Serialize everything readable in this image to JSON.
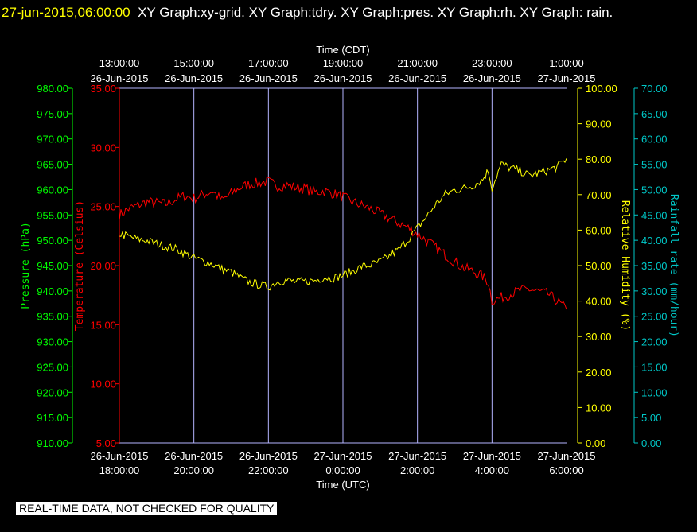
{
  "header": {
    "timestamp": "27-jun-2015,06:00:00",
    "title": "XY Graph:xy-grid.  XY Graph:tdry.  XY Graph:pres.  XY Graph:rh.  XY Graph: rain."
  },
  "footer": {
    "disclaimer": "REAL-TIME DATA, NOT CHECKED FOR QUALITY"
  },
  "colors": {
    "background": "#000000",
    "temperature": "#ff0000",
    "humidity": "#ffff00",
    "pressure": "#00ff00",
    "rainfall": "#00c8c8",
    "grid": "#b4b4ff",
    "axes_text": "#ffffff"
  },
  "chart_data": {
    "type": "line",
    "time_axes": {
      "top": {
        "label": "Time (CDT)",
        "ticks": [
          {
            "time": "13:00:00",
            "date": "26-Jun-2015"
          },
          {
            "time": "15:00:00",
            "date": "26-Jun-2015"
          },
          {
            "time": "17:00:00",
            "date": "26-Jun-2015"
          },
          {
            "time": "19:00:00",
            "date": "26-Jun-2015"
          },
          {
            "time": "21:00:00",
            "date": "26-Jun-2015"
          },
          {
            "time": "23:00:00",
            "date": "26-Jun-2015"
          },
          {
            "time": "1:00:00",
            "date": "27-Jun-2015"
          }
        ]
      },
      "bottom": {
        "label": "Time (UTC)",
        "ticks": [
          {
            "date": "26-Jun-2015",
            "time": "18:00:00"
          },
          {
            "date": "26-Jun-2015",
            "time": "20:00:00"
          },
          {
            "date": "26-Jun-2015",
            "time": "22:00:00"
          },
          {
            "date": "27-Jun-2015",
            "time": "0:00:00"
          },
          {
            "date": "27-Jun-2015",
            "time": "2:00:00"
          },
          {
            "date": "27-Jun-2015",
            "time": "4:00:00"
          },
          {
            "date": "27-Jun-2015",
            "time": "6:00:00"
          }
        ]
      },
      "range_hours_utc": [
        18,
        30
      ]
    },
    "y_axes": {
      "pressure": {
        "label": "Pressure (hPa)",
        "range": [
          910,
          980
        ],
        "ticks": [
          "910.00",
          "915.00",
          "920.00",
          "925.00",
          "930.00",
          "935.00",
          "940.00",
          "945.00",
          "950.00",
          "955.00",
          "960.00",
          "965.00",
          "970.00",
          "975.00",
          "980.00"
        ]
      },
      "temperature": {
        "label": "Temperature (Celsius)",
        "range": [
          5,
          35
        ],
        "ticks": [
          "5.00",
          "10.00",
          "15.00",
          "20.00",
          "25.00",
          "30.00",
          "35.00"
        ]
      },
      "humidity": {
        "label": "Relative Humidity (%)",
        "range": [
          0,
          100
        ],
        "ticks": [
          "0.00",
          "10.00",
          "20.00",
          "30.00",
          "40.00",
          "50.00",
          "60.00",
          "70.00",
          "80.00",
          "90.00",
          "100.00"
        ]
      },
      "rainfall": {
        "label": "Rainfall rate (mm/hour)",
        "range": [
          0,
          70
        ],
        "ticks": [
          "0.00",
          "5.00",
          "10.00",
          "15.00",
          "20.00",
          "25.00",
          "30.00",
          "35.00",
          "40.00",
          "45.00",
          "50.00",
          "55.00",
          "60.00",
          "65.00",
          "70.00"
        ]
      }
    },
    "grid": true,
    "series": [
      {
        "key": "temperature",
        "x": [
          18.0,
          18.25,
          18.5,
          18.75,
          19.0,
          19.25,
          19.5,
          19.75,
          20.0,
          20.25,
          20.5,
          20.75,
          21.0,
          21.25,
          21.5,
          21.75,
          22.0,
          22.25,
          22.5,
          22.75,
          23.0,
          23.25,
          23.5,
          23.75,
          24.0,
          24.25,
          24.5,
          24.75,
          25.0,
          25.25,
          25.5,
          25.75,
          26.0,
          26.25,
          26.5,
          26.75,
          27.0,
          27.25,
          27.5,
          27.75,
          27.9,
          28.0,
          28.25,
          28.5,
          28.75,
          29.0,
          29.25,
          29.5,
          29.75,
          30.0
        ],
        "y": [
          24.3,
          24.8,
          25.1,
          25.4,
          25.3,
          25.2,
          25.6,
          25.9,
          25.7,
          26.0,
          26.3,
          25.5,
          26.1,
          26.6,
          26.9,
          27.0,
          27.1,
          26.7,
          26.8,
          26.6,
          26.5,
          26.2,
          26.3,
          26.1,
          25.8,
          25.4,
          25.1,
          24.8,
          24.4,
          24.0,
          23.6,
          23.2,
          22.7,
          22.1,
          21.5,
          20.9,
          20.3,
          19.8,
          19.5,
          19.1,
          18.6,
          17.0,
          17.3,
          17.6,
          17.9,
          18.0,
          17.8,
          17.6,
          17.0,
          16.3
        ],
        "noise": 0.45
      },
      {
        "key": "humidity",
        "x": [
          18.0,
          18.25,
          18.5,
          18.75,
          19.0,
          19.25,
          19.5,
          19.75,
          20.0,
          20.25,
          20.5,
          20.75,
          21.0,
          21.25,
          21.5,
          21.75,
          22.0,
          22.25,
          22.5,
          22.75,
          23.0,
          23.25,
          23.5,
          23.75,
          24.0,
          24.25,
          24.5,
          24.75,
          25.0,
          25.25,
          25.5,
          25.75,
          26.0,
          26.25,
          26.5,
          26.75,
          27.0,
          27.25,
          27.5,
          27.75,
          27.9,
          28.0,
          28.25,
          28.5,
          28.75,
          29.0,
          29.25,
          29.5,
          29.75,
          30.0
        ],
        "y": [
          59.0,
          58.2,
          57.4,
          57.0,
          56.2,
          55.4,
          54.8,
          53.5,
          52.1,
          51.3,
          50.4,
          49.0,
          48.2,
          46.5,
          45.3,
          44.6,
          44.0,
          45.5,
          45.9,
          45.4,
          45.6,
          45.8,
          46.7,
          46.5,
          47.3,
          48.4,
          49.7,
          50.2,
          51.1,
          52.7,
          54.6,
          57.4,
          60.6,
          63.9,
          67.4,
          70.1,
          71.3,
          71.8,
          72.6,
          74.3,
          76.8,
          72.0,
          78.6,
          77.5,
          76.7,
          75.4,
          76.1,
          76.9,
          77.8,
          80.2
        ],
        "noise": 1.2
      },
      {
        "key": "rainfall",
        "x": [
          18.0,
          30.0
        ],
        "y": [
          0.4,
          0.4
        ],
        "noise": 0
      }
    ]
  }
}
